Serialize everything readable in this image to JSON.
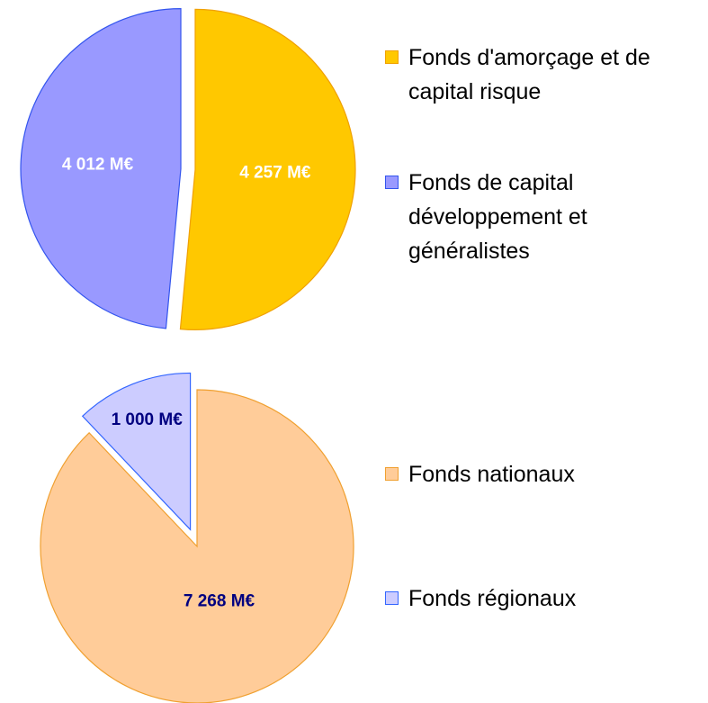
{
  "chart_data": [
    {
      "type": "pie",
      "categories": [
        "Fonds d'amorçage et de capital risque",
        "Fonds de capital développement et généralistes"
      ],
      "values": [
        4257,
        4012
      ],
      "value_labels": [
        "4 257 M€",
        "4 012 M€"
      ],
      "colors": [
        "#ffc800",
        "#9999ff"
      ],
      "label_color": "#ffffff"
    },
    {
      "type": "pie",
      "categories": [
        "Fonds nationaux",
        "Fonds régionaux"
      ],
      "values": [
        7268,
        1000
      ],
      "value_labels": [
        "7 268 M€",
        "1 000 M€"
      ],
      "colors": [
        "#ffcc99",
        "#ccccff"
      ],
      "label_color": "#000080"
    }
  ]
}
